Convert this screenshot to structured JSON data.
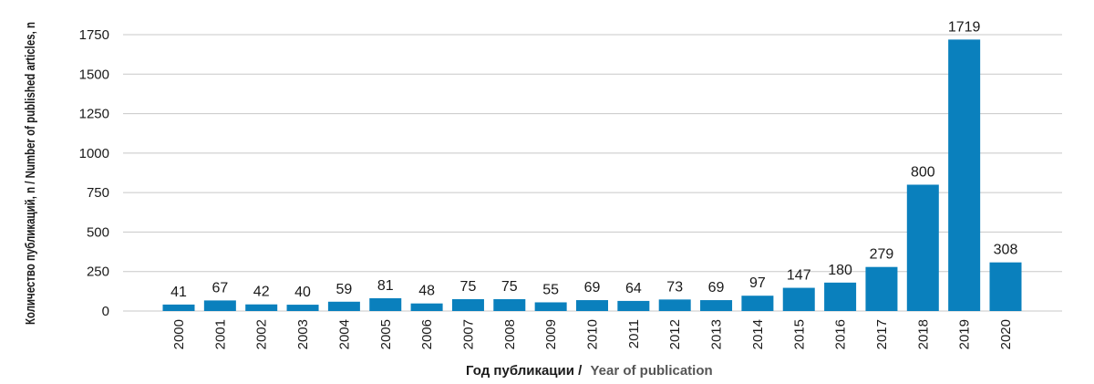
{
  "chart_data": {
    "type": "bar",
    "categories": [
      "2000",
      "2001",
      "2002",
      "2003",
      "2004",
      "2005",
      "2006",
      "2007",
      "2008",
      "2009",
      "2010",
      "2011",
      "2012",
      "2013",
      "2014",
      "2015",
      "2016",
      "2017",
      "2018",
      "2019",
      "2020"
    ],
    "values": [
      41,
      67,
      42,
      40,
      59,
      81,
      48,
      75,
      75,
      55,
      69,
      64,
      73,
      69,
      97,
      147,
      180,
      279,
      800,
      1719,
      308
    ],
    "data_labels": [
      "41",
      "67",
      "42",
      "40",
      "59",
      "81",
      "48",
      "75",
      "75",
      "55",
      "69",
      "64",
      "73",
      "69",
      "97",
      "147",
      "180",
      "279",
      "800",
      "1719",
      "308"
    ],
    "yticks": [
      0,
      250,
      500,
      750,
      1000,
      1250,
      1500,
      1750
    ],
    "ylim": [
      0,
      1750
    ],
    "xlabel_ru": "Год публикации /",
    "xlabel_en": "Year of publication",
    "ylabel": "Количество публикаций, n / Number of published articles, n",
    "grid": true,
    "bar_color": "#0a80bd",
    "grid_color": "#c8c8c8",
    "xlabel_en_color": "#555555"
  }
}
